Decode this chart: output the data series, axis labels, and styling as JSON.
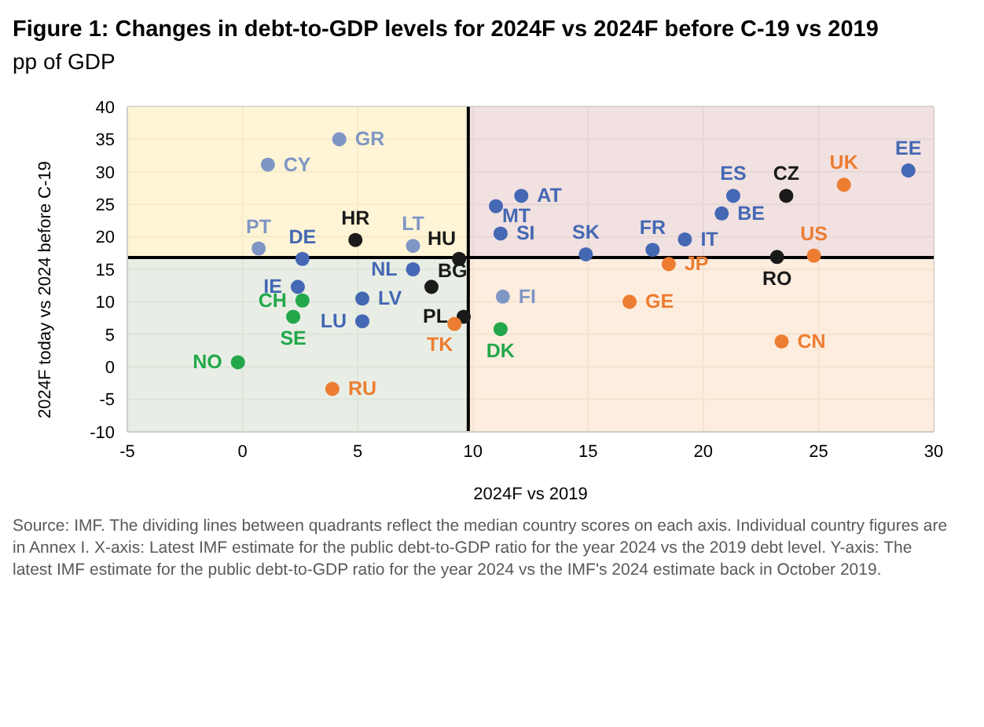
{
  "chart_data": {
    "type": "scatter",
    "title": "Figure 1: Changes in debt-to-GDP levels for 2024F vs 2024F before C-19 vs 2019",
    "subtitle": "pp of GDP",
    "xlabel": "2024F vs 2019",
    "ylabel": "2024F today vs 2024 before C-19",
    "xlim": [
      -5,
      30
    ],
    "xticks": [
      -5,
      0,
      5,
      10,
      15,
      20,
      25,
      30
    ],
    "ylim": [
      -10,
      40
    ],
    "yticks": [
      -10,
      -5,
      0,
      5,
      10,
      15,
      20,
      25,
      30,
      35,
      40
    ],
    "grid": true,
    "legend": false,
    "marker": "circle",
    "ref_lines": [
      {
        "axis": "x",
        "value": 9.8,
        "color": "#000000"
      },
      {
        "axis": "y",
        "value": 16.8,
        "color": "#000000"
      }
    ],
    "series": [
      {
        "color": "#7f96c4",
        "x": [
          4.2,
          1.1,
          0.7,
          7.4,
          11.3
        ],
        "values": [
          35.0,
          31.1,
          18.2,
          18.6,
          10.8
        ],
        "value_labels": [
          "GR",
          "CY",
          "PT",
          "LT",
          "FI"
        ]
      },
      {
        "color": "#4468b4",
        "x": [
          2.6,
          7.4,
          2.4,
          5.2,
          5.2,
          11.0,
          12.1,
          11.2,
          14.9,
          17.8,
          19.2,
          20.8,
          21.3,
          28.9
        ],
        "values": [
          16.6,
          15.0,
          12.3,
          10.5,
          7.0,
          24.7,
          26.3,
          20.5,
          17.3,
          18.0,
          19.6,
          23.6,
          26.3,
          30.2
        ],
        "value_labels": [
          "DE",
          "NL",
          "IE",
          "LV",
          "LU",
          "MT",
          "AT",
          "SI",
          "SK",
          "FR",
          "IT",
          "BE",
          "ES",
          "EE"
        ]
      },
      {
        "color": "#1a1a1a",
        "x": [
          4.9,
          9.4,
          8.2,
          9.6,
          23.6,
          23.2
        ],
        "values": [
          19.5,
          16.6,
          12.3,
          7.7,
          26.3,
          16.9
        ],
        "value_labels": [
          "HR",
          "HU",
          "BG",
          "PL",
          "CZ",
          "RO"
        ]
      },
      {
        "color": "#22a84a",
        "x": [
          2.6,
          2.2,
          -0.2,
          11.2
        ],
        "values": [
          10.2,
          7.7,
          0.7,
          5.8
        ],
        "value_labels": [
          "CH",
          "SE",
          "NO",
          "DK"
        ]
      },
      {
        "color": "#ed7d31",
        "x": [
          9.2,
          3.9,
          18.5,
          16.8,
          23.4,
          26.1,
          24.8
        ],
        "values": [
          6.6,
          -3.4,
          15.8,
          10.0,
          3.9,
          28.0,
          17.1
        ],
        "value_labels": [
          "TK",
          "RU",
          "JP",
          "GE",
          "CN",
          "UK",
          "US"
        ]
      }
    ],
    "annotations": [
      "Source: IMF. The dividing lines between quadrants reflect the median country scores on each axis. Individual country figures are in Annex I. X-axis: Latest IMF estimate for the public debt-to-GDP ratio for the year 2024 vs the 2019 debt level. Y-axis: The latest IMF estimate for the public debt-to-GDP ratio for the year 2024 vs the IMF's 2024 estimate back in October 2019."
    ]
  }
}
